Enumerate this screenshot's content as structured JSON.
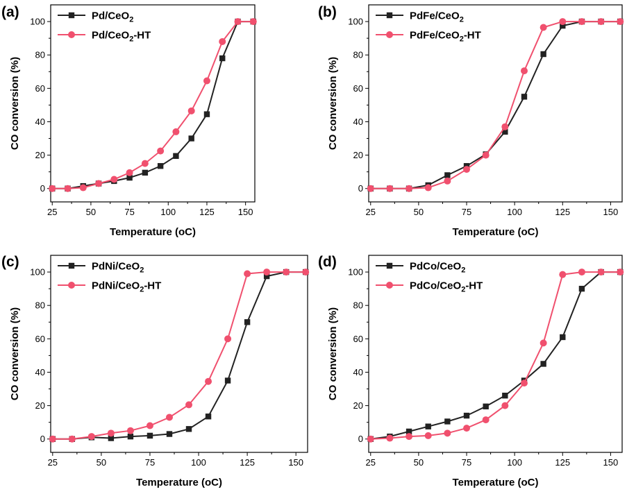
{
  "colors": {
    "series_black": "#222222",
    "series_red": "#F0506E"
  },
  "chart_data": [
    {
      "panel_label": "(a)",
      "type": "line",
      "xlabel": "Temperature (",
      "xlabel_unit": "oC",
      "xlabel_close": ")",
      "ylabel": "CO conversion (%)",
      "xlim": [
        24,
        156
      ],
      "ylim": [
        -8,
        110
      ],
      "xticks": [
        25,
        50,
        75,
        100,
        125,
        150
      ],
      "yticks": [
        0,
        20,
        40,
        60,
        80,
        100
      ],
      "legend_position": "top-left",
      "x": [
        25,
        35,
        45,
        55,
        65,
        75,
        85,
        95,
        105,
        115,
        125,
        135,
        145,
        155
      ],
      "series": [
        {
          "name": "Pd/CeO",
          "sub": "2",
          "suffix": "",
          "color": "#222222",
          "marker": "square",
          "values": [
            0,
            0,
            1.5,
            3,
            4.5,
            6.5,
            9.5,
            13.5,
            19.5,
            30,
            44.5,
            78,
            100,
            100
          ]
        },
        {
          "name": "Pd/CeO",
          "sub": "2",
          "suffix": "-HT",
          "color": "#F0506E",
          "marker": "circle",
          "values": [
            0,
            0,
            0.5,
            3,
            5.5,
            9.5,
            15,
            22.5,
            34,
            46.5,
            64.5,
            88,
            100,
            100
          ]
        }
      ]
    },
    {
      "panel_label": "(b)",
      "type": "line",
      "xlabel": "Temperature (",
      "xlabel_unit": "oC",
      "xlabel_close": ")",
      "ylabel": "CO conversion (%)",
      "xlim": [
        24,
        156
      ],
      "ylim": [
        -8,
        110
      ],
      "xticks": [
        25,
        50,
        75,
        100,
        125,
        150
      ],
      "yticks": [
        0,
        20,
        40,
        60,
        80,
        100
      ],
      "legend_position": "top-left",
      "x": [
        25,
        35,
        45,
        55,
        65,
        75,
        85,
        95,
        105,
        115,
        125,
        135,
        145,
        155
      ],
      "series": [
        {
          "name": "PdFe/CeO",
          "sub": "2",
          "suffix": "",
          "color": "#222222",
          "marker": "square",
          "values": [
            0,
            0,
            0,
            2,
            8,
            13.5,
            20.5,
            34,
            55,
            80.5,
            97.5,
            100,
            100,
            100
          ]
        },
        {
          "name": "PdFe/CeO",
          "sub": "2",
          "suffix": "-HT",
          "color": "#F0506E",
          "marker": "circle",
          "values": [
            0,
            0,
            0,
            0.5,
            4.5,
            11.5,
            20,
            37,
            70.5,
            96.5,
            100,
            100,
            100,
            100
          ]
        }
      ]
    },
    {
      "panel_label": "(c)",
      "type": "line",
      "xlabel": "Temperature (",
      "xlabel_unit": "oC",
      "xlabel_close": ")",
      "ylabel": "CO conversion (%)",
      "xlim": [
        24,
        156
      ],
      "ylim": [
        -8,
        110
      ],
      "xticks": [
        25,
        50,
        75,
        100,
        125,
        150
      ],
      "yticks": [
        0,
        20,
        40,
        60,
        80,
        100
      ],
      "legend_position": "top-left",
      "x": [
        25,
        35,
        45,
        55,
        65,
        75,
        85,
        95,
        105,
        115,
        125,
        135,
        145,
        155
      ],
      "series": [
        {
          "name": "PdNi/CeO",
          "sub": "2",
          "suffix": "",
          "color": "#222222",
          "marker": "square",
          "values": [
            0,
            0,
            1,
            0.5,
            1.5,
            2,
            3,
            6,
            13.5,
            35,
            70,
            97.5,
            100,
            100
          ]
        },
        {
          "name": "PdNi/CeO",
          "sub": "2",
          "suffix": "-HT",
          "color": "#F0506E",
          "marker": "circle",
          "values": [
            0,
            0,
            1.5,
            3.5,
            5,
            8,
            13,
            20.5,
            34.5,
            60,
            99,
            100,
            100,
            100
          ]
        }
      ]
    },
    {
      "panel_label": "(d)",
      "type": "line",
      "xlabel": "Temperature (",
      "xlabel_unit": "oC",
      "xlabel_close": ")",
      "ylabel": "CO conversion (%)",
      "xlim": [
        24,
        156
      ],
      "ylim": [
        -8,
        110
      ],
      "xticks": [
        25,
        50,
        75,
        100,
        125,
        150
      ],
      "yticks": [
        0,
        20,
        40,
        60,
        80,
        100
      ],
      "legend_position": "top-left",
      "x": [
        25,
        35,
        45,
        55,
        65,
        75,
        85,
        95,
        105,
        115,
        125,
        135,
        145,
        155
      ],
      "series": [
        {
          "name": "PdCo/CeO",
          "sub": "2",
          "suffix": "",
          "color": "#222222",
          "marker": "square",
          "values": [
            0,
            1.5,
            4.5,
            7.5,
            10.5,
            14,
            19.5,
            26,
            35,
            45,
            61,
            90,
            100,
            100
          ]
        },
        {
          "name": "PdCo/CeO",
          "sub": "2",
          "suffix": "-HT",
          "color": "#F0506E",
          "marker": "circle",
          "values": [
            0,
            0.5,
            1.5,
            2,
            3.5,
            6.5,
            11.5,
            20,
            33.5,
            57.5,
            98.5,
            100,
            100,
            100
          ]
        }
      ]
    }
  ]
}
